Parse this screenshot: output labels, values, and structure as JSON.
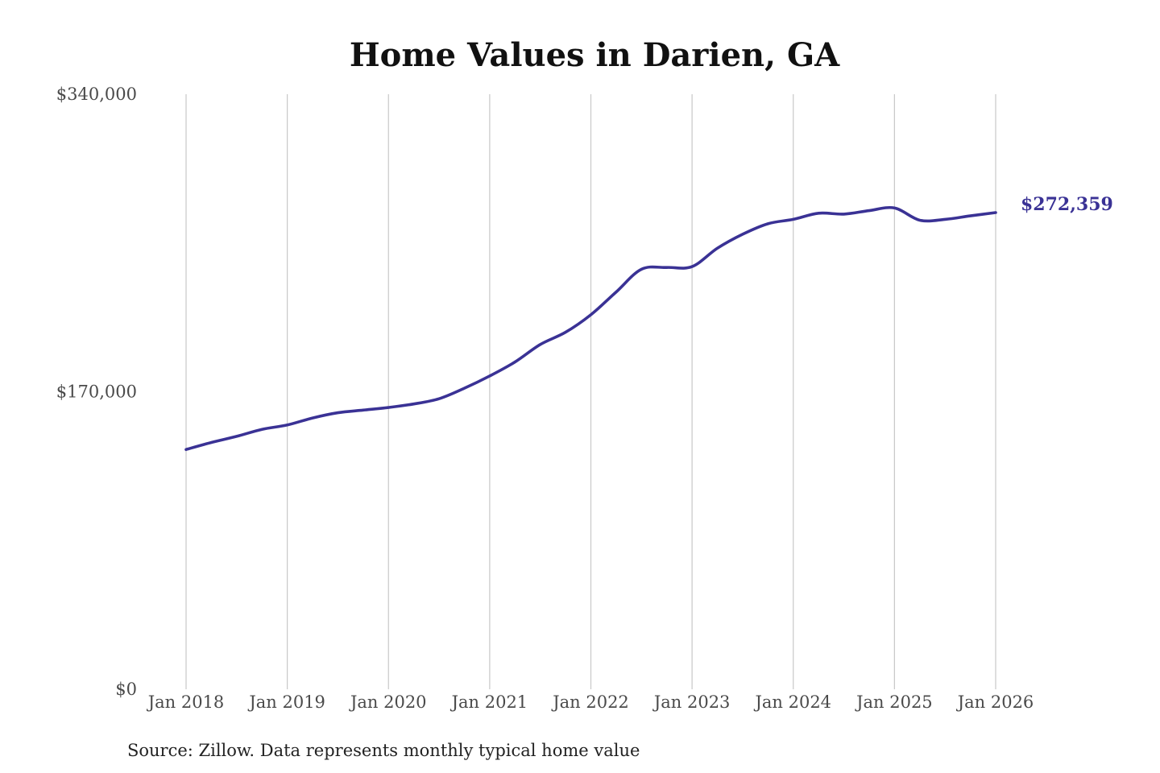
{
  "chart_data": {
    "type": "line",
    "title": "Home Values in Darien, GA",
    "xlabel": "",
    "ylabel": "",
    "ylim": [
      0,
      340000
    ],
    "xlim": [
      "2018-01",
      "2026-01"
    ],
    "grid": {
      "vertical": true,
      "horizontal": false
    },
    "y_ticks": [
      {
        "value": 0,
        "label": "$0"
      },
      {
        "value": 170000,
        "label": "$170,000"
      },
      {
        "value": 340000,
        "label": "$340,000"
      }
    ],
    "x_ticks": [
      {
        "value": "2018-01",
        "label": "Jan 2018"
      },
      {
        "value": "2019-01",
        "label": "Jan 2019"
      },
      {
        "value": "2020-01",
        "label": "Jan 2020"
      },
      {
        "value": "2021-01",
        "label": "Jan 2021"
      },
      {
        "value": "2022-01",
        "label": "Jan 2022"
      },
      {
        "value": "2023-01",
        "label": "Jan 2023"
      },
      {
        "value": "2024-01",
        "label": "Jan 2024"
      },
      {
        "value": "2025-01",
        "label": "Jan 2025"
      },
      {
        "value": "2026-01",
        "label": "Jan 2026"
      }
    ],
    "series": [
      {
        "color": "#3a3295",
        "points": [
          {
            "x": "2018-01",
            "y": 137000
          },
          {
            "x": "2018-04",
            "y": 141000
          },
          {
            "x": "2018-07",
            "y": 144500
          },
          {
            "x": "2018-10",
            "y": 148500
          },
          {
            "x": "2019-01",
            "y": 151000
          },
          {
            "x": "2019-04",
            "y": 155000
          },
          {
            "x": "2019-07",
            "y": 158000
          },
          {
            "x": "2019-10",
            "y": 159500
          },
          {
            "x": "2020-01",
            "y": 161000
          },
          {
            "x": "2020-04",
            "y": 163000
          },
          {
            "x": "2020-07",
            "y": 166000
          },
          {
            "x": "2020-10",
            "y": 172000
          },
          {
            "x": "2021-01",
            "y": 179000
          },
          {
            "x": "2021-04",
            "y": 187000
          },
          {
            "x": "2021-07",
            "y": 197000
          },
          {
            "x": "2021-10",
            "y": 204000
          },
          {
            "x": "2022-01",
            "y": 214000
          },
          {
            "x": "2022-04",
            "y": 227000
          },
          {
            "x": "2022-07",
            "y": 240000
          },
          {
            "x": "2022-10",
            "y": 241000
          },
          {
            "x": "2023-01",
            "y": 241500
          },
          {
            "x": "2023-04",
            "y": 252000
          },
          {
            "x": "2023-07",
            "y": 260000
          },
          {
            "x": "2023-10",
            "y": 266000
          },
          {
            "x": "2024-01",
            "y": 268500
          },
          {
            "x": "2024-04",
            "y": 272000
          },
          {
            "x": "2024-07",
            "y": 271500
          },
          {
            "x": "2024-10",
            "y": 273500
          },
          {
            "x": "2025-01",
            "y": 275000
          },
          {
            "x": "2025-04",
            "y": 268000
          },
          {
            "x": "2025-07",
            "y": 268500
          },
          {
            "x": "2025-10",
            "y": 270500
          },
          {
            "x": "2026-01",
            "y": 272359
          }
        ]
      }
    ],
    "annotations": [
      {
        "text": "$272,359",
        "x": "2026-01",
        "y": 272359
      }
    ]
  },
  "source": "Source: Zillow. Data represents monthly typical home value"
}
